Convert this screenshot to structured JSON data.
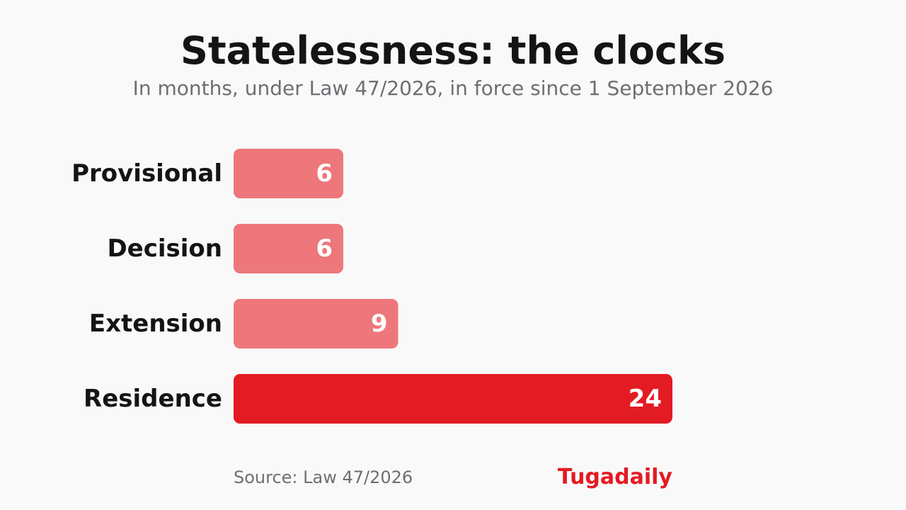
{
  "title": "Statelessness: the clocks",
  "subtitle": "In months, under Law 47/2026, in force since 1 September 2026",
  "source": "Source: Law 47/2026",
  "brand": "Tugadaily",
  "colors": {
    "muted_bar": "#ee777b",
    "highlight_bar": "#e31b23",
    "label_dark": "#141414",
    "label_light": "#ffffff",
    "background": "#f9f9f9"
  },
  "chart_data": {
    "type": "bar",
    "orientation": "horizontal",
    "categories": [
      "Provisional",
      "Decision",
      "Extension",
      "Residence"
    ],
    "values": [
      6,
      6,
      9,
      24
    ],
    "highlight": [
      "Residence"
    ],
    "title": "Statelessness: the clocks",
    "subtitle": "In months, under Law 47/2026, in force since 1 September 2026",
    "xlim": [
      0,
      24
    ],
    "grid": false,
    "legend": "none"
  }
}
